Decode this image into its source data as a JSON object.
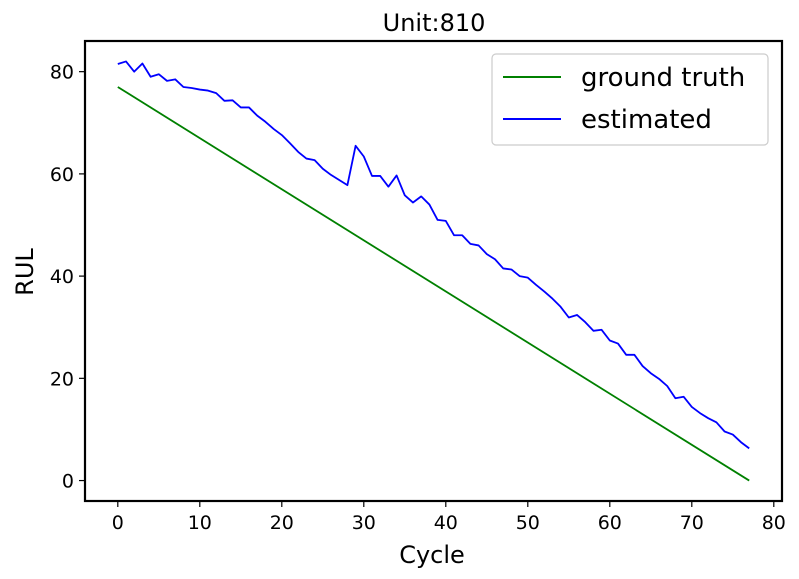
{
  "chart_data": {
    "type": "line",
    "title": "Unit:810",
    "xlabel": "Cycle",
    "ylabel": "RUL",
    "xlim": [
      -4,
      81
    ],
    "ylim": [
      -4,
      86
    ],
    "xticks": [
      0,
      10,
      20,
      30,
      40,
      50,
      60,
      70,
      80
    ],
    "yticks": [
      0,
      20,
      40,
      60,
      80
    ],
    "grid": false,
    "legend_position": "top-right",
    "series": [
      {
        "name": "ground truth",
        "color": "#008000",
        "x": [
          0,
          77
        ],
        "y": [
          77,
          0
        ]
      },
      {
        "name": "estimated",
        "color": "#0000ff",
        "x": [
          0,
          1,
          2,
          3,
          4,
          5,
          6,
          7,
          8,
          9,
          10,
          11,
          12,
          13,
          14,
          15,
          16,
          17,
          18,
          19,
          20,
          21,
          22,
          23,
          24,
          25,
          26,
          27,
          28,
          29,
          30,
          31,
          32,
          33,
          34,
          35,
          36,
          37,
          38,
          39,
          40,
          41,
          42,
          43,
          44,
          45,
          46,
          47,
          48,
          49,
          50,
          51,
          52,
          53,
          54,
          55,
          56,
          57,
          58,
          59,
          60,
          61,
          62,
          63,
          64,
          65,
          66,
          67,
          68,
          69,
          70,
          71,
          72,
          73,
          74,
          75,
          76,
          77
        ],
        "y": [
          81.5,
          82,
          80,
          81.6,
          79,
          79.5,
          78.2,
          78.5,
          77,
          76.8,
          76.5,
          76.3,
          75.8,
          74.3,
          74.4,
          73,
          73,
          71.4,
          70.2,
          68.8,
          67.6,
          66,
          64.3,
          63,
          62.7,
          61,
          59.8,
          58.8,
          57.8,
          65.5,
          63.4,
          59.6,
          59.6,
          57.5,
          59.7,
          55.8,
          54.4,
          55.6,
          54,
          51,
          50.8,
          48,
          48,
          46.3,
          46,
          44.3,
          43.3,
          41.5,
          41.3,
          40,
          39.7,
          38.3,
          37,
          35.6,
          34,
          31.9,
          32.4,
          31,
          29.3,
          29.5,
          27.4,
          26.8,
          24.6,
          24.6,
          22.4,
          21,
          19.9,
          18.5,
          16.1,
          16.4,
          14.4,
          13.2,
          12.2,
          11.4,
          9.6,
          9,
          7.5,
          6.3
        ]
      }
    ]
  }
}
